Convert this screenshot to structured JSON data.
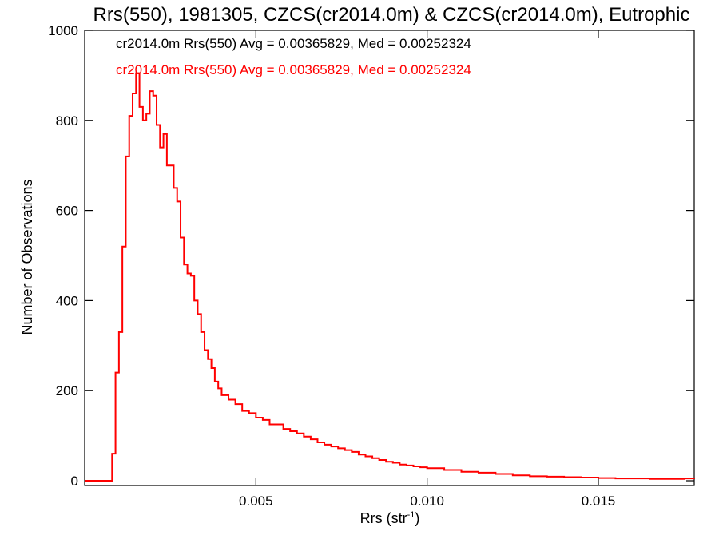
{
  "chart_data": {
    "type": "step",
    "title": "Rrs(550), 1981305, CZCS(cr2014.0m) & CZCS(cr2014.0m), Eutrophic",
    "xlabel": "Rrs (str",
    "xlabel_sup": "-1",
    "xlabel_end": ")",
    "ylabel": "Number of Observations",
    "xlim": [
      0.0,
      0.0178
    ],
    "ylim": [
      0,
      1000
    ],
    "xticks": [
      {
        "value": 0.005,
        "label": "0.005"
      },
      {
        "value": 0.01,
        "label": "0.010"
      },
      {
        "value": 0.015,
        "label": "0.015"
      }
    ],
    "yticks": [
      {
        "value": 0,
        "label": "0"
      },
      {
        "value": 200,
        "label": "200"
      },
      {
        "value": 400,
        "label": "400"
      },
      {
        "value": 600,
        "label": "600"
      },
      {
        "value": 800,
        "label": "800"
      },
      {
        "value": 1000,
        "label": "1000"
      }
    ],
    "legend": [
      {
        "text": "cr2014.0m Rrs(550) Avg = 0.00365829, Med = 0.00252324",
        "color": "#000000"
      },
      {
        "text": "cr2014.0m Rrs(550) Avg = 0.00365829, Med = 0.00252324",
        "color": "#ff0000"
      }
    ],
    "series": [
      {
        "color": "#ff0000",
        "points": [
          [
            0.0,
            0
          ],
          [
            0.0007,
            0
          ],
          [
            0.0008,
            60
          ],
          [
            0.0009,
            240
          ],
          [
            0.001,
            330
          ],
          [
            0.0011,
            520
          ],
          [
            0.0012,
            720
          ],
          [
            0.0013,
            810
          ],
          [
            0.0014,
            860
          ],
          [
            0.0015,
            905
          ],
          [
            0.0016,
            830
          ],
          [
            0.0017,
            800
          ],
          [
            0.0018,
            815
          ],
          [
            0.0019,
            865
          ],
          [
            0.002,
            855
          ],
          [
            0.0021,
            790
          ],
          [
            0.0022,
            740
          ],
          [
            0.0023,
            770
          ],
          [
            0.0024,
            700
          ],
          [
            0.0025,
            700
          ],
          [
            0.0026,
            650
          ],
          [
            0.0027,
            620
          ],
          [
            0.0028,
            540
          ],
          [
            0.0029,
            480
          ],
          [
            0.003,
            460
          ],
          [
            0.0031,
            455
          ],
          [
            0.0032,
            400
          ],
          [
            0.0033,
            370
          ],
          [
            0.0034,
            330
          ],
          [
            0.0035,
            290
          ],
          [
            0.0036,
            270
          ],
          [
            0.0037,
            250
          ],
          [
            0.0038,
            220
          ],
          [
            0.0039,
            205
          ],
          [
            0.004,
            190
          ],
          [
            0.0042,
            180
          ],
          [
            0.0044,
            170
          ],
          [
            0.0046,
            155
          ],
          [
            0.0048,
            150
          ],
          [
            0.005,
            140
          ],
          [
            0.0052,
            135
          ],
          [
            0.0054,
            125
          ],
          [
            0.0056,
            125
          ],
          [
            0.0058,
            115
          ],
          [
            0.006,
            110
          ],
          [
            0.0062,
            105
          ],
          [
            0.0064,
            98
          ],
          [
            0.0066,
            92
          ],
          [
            0.0068,
            85
          ],
          [
            0.007,
            80
          ],
          [
            0.0072,
            76
          ],
          [
            0.0074,
            72
          ],
          [
            0.0076,
            68
          ],
          [
            0.0078,
            64
          ],
          [
            0.008,
            58
          ],
          [
            0.0082,
            54
          ],
          [
            0.0084,
            50
          ],
          [
            0.0086,
            46
          ],
          [
            0.0088,
            42
          ],
          [
            0.009,
            40
          ],
          [
            0.0092,
            36
          ],
          [
            0.0094,
            34
          ],
          [
            0.0096,
            32
          ],
          [
            0.0098,
            30
          ],
          [
            0.01,
            28
          ],
          [
            0.0105,
            24
          ],
          [
            0.011,
            20
          ],
          [
            0.0115,
            18
          ],
          [
            0.012,
            15
          ],
          [
            0.0125,
            12
          ],
          [
            0.013,
            10
          ],
          [
            0.0135,
            9
          ],
          [
            0.014,
            8
          ],
          [
            0.0145,
            7
          ],
          [
            0.015,
            6
          ],
          [
            0.0155,
            5
          ],
          [
            0.016,
            5
          ],
          [
            0.0165,
            4
          ],
          [
            0.017,
            4
          ],
          [
            0.0175,
            5
          ],
          [
            0.0178,
            4
          ]
        ]
      }
    ]
  }
}
